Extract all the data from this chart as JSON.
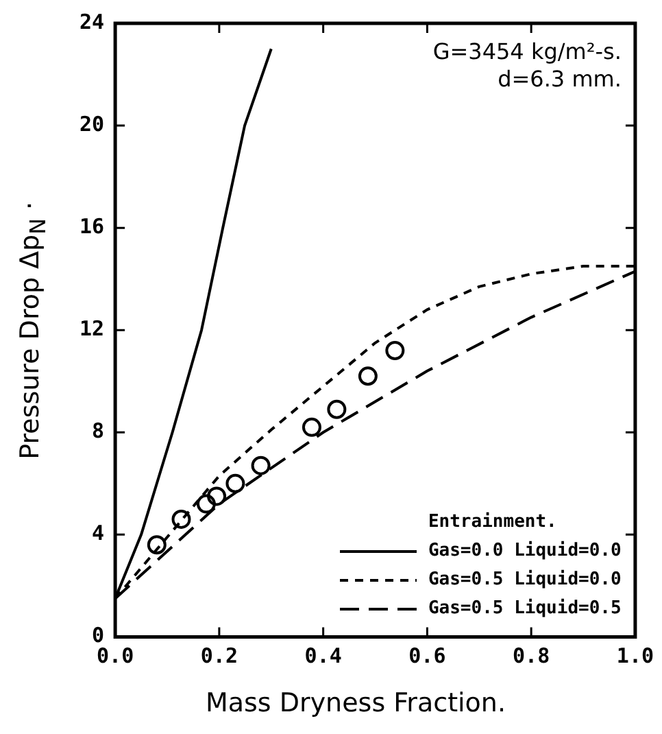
{
  "chart_data": {
    "type": "line",
    "xlabel": "Mass Dryness Fraction.",
    "ylabel": "Pressure Drop Δp$_{N}$ ·",
    "legend_title": "Entrainment.",
    "legend": "bottom right",
    "grid": false,
    "marker": "none",
    "annotations": [
      "G=3454 kg/m²-s.",
      "d=6.3 mm."
    ],
    "xlim": [
      0,
      1
    ],
    "xticks": [
      {
        "value": 0,
        "label": "0.0"
      },
      {
        "value": 0.2,
        "label": "0.2"
      },
      {
        "value": 0.4,
        "label": "0.4"
      },
      {
        "value": 0.6,
        "label": "0.6"
      },
      {
        "value": 0.8,
        "label": "0.8"
      },
      {
        "value": 1,
        "label": "1.0"
      }
    ],
    "ylim": [
      0,
      24
    ],
    "yticks": [
      0,
      4,
      8,
      12,
      16,
      20,
      24
    ],
    "series": [
      {
        "name": "Gas=0.0 Liquid=0.0",
        "color": "#000000",
        "line_style": "solid",
        "x": [
          0,
          0.05,
          0.11,
          0.166,
          0.207,
          0.249,
          0.3
        ],
        "values": [
          1.5,
          4,
          8,
          12,
          16,
          20,
          23
        ]
      },
      {
        "name": "Gas=0.5 Liquid=0.0",
        "color": "#000000",
        "line_style": "dotted",
        "x": [
          0,
          0.1,
          0.2,
          0.3,
          0.4,
          0.5,
          0.6,
          0.7,
          0.8,
          0.9,
          1.0
        ],
        "values": [
          1.5,
          3.9,
          6.3,
          8.1,
          9.8,
          11.5,
          12.8,
          13.7,
          14.2,
          14.5,
          14.5
        ]
      },
      {
        "name": "Gas=0.5 Liquid=0.5",
        "color": "#000000",
        "line_style": "dashed",
        "x": [
          0,
          0.2,
          0.4,
          0.6,
          0.8,
          1.0
        ],
        "values": [
          1.5,
          5.2,
          8.0,
          10.4,
          12.5,
          14.3
        ]
      },
      {
        "type": "scatter",
        "color": "#000000",
        "marker": "circle",
        "x": [
          0.08,
          0.127,
          0.175,
          0.195,
          0.231,
          0.28,
          0.378,
          0.426,
          0.486,
          0.538
        ],
        "values": [
          3.6,
          4.6,
          5.2,
          5.5,
          6.0,
          6.7,
          8.2,
          8.9,
          10.2,
          11.2
        ]
      }
    ]
  }
}
